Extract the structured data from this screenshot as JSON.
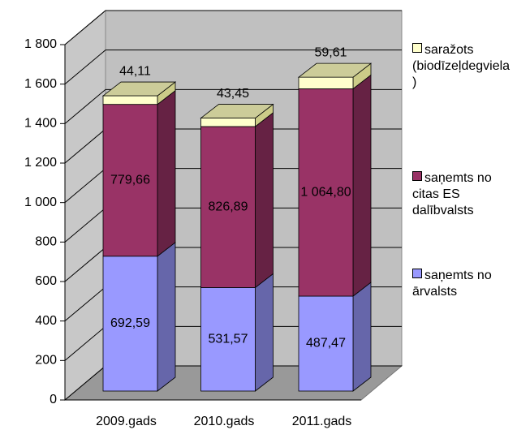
{
  "chart_data": {
    "type": "bar3d_stacked",
    "categories": [
      "2009.gads",
      "2010.gads",
      "2011.gads"
    ],
    "series": [
      {
        "name": "saņemts no ārvalsts",
        "color": "#9999ff",
        "values": [
          692.59,
          531.57,
          487.47
        ],
        "value_labels": [
          "692,59",
          "531,57",
          "487,47"
        ]
      },
      {
        "name": "saņemts no citas ES dalībvalsts",
        "color": "#993366",
        "values": [
          779.66,
          826.89,
          1064.8
        ],
        "value_labels": [
          "779,66",
          "826,89",
          "1 064,80"
        ]
      },
      {
        "name": "saražots (biodīzeļdegviela)",
        "color": "#ffffcc",
        "values": [
          44.11,
          43.45,
          59.61
        ],
        "value_labels": [
          "44,11",
          "43,45",
          "59,61"
        ]
      }
    ],
    "ylim": [
      0,
      1800
    ],
    "yticks": [
      0,
      200,
      400,
      600,
      800,
      {
        "value": 1000,
        "label": "1 000"
      },
      {
        "value": 1200,
        "label": "1 200"
      },
      {
        "value": 1400,
        "label": "1 400"
      },
      {
        "value": 1600,
        "label": "1 600"
      },
      {
        "value": 1800,
        "label": "1 800"
      }
    ],
    "grid": true
  }
}
